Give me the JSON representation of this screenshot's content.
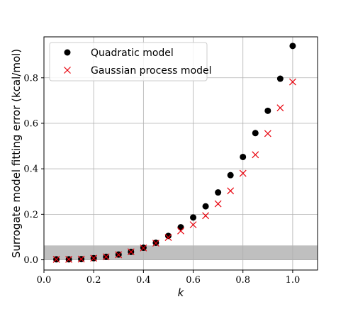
{
  "chart_data": {
    "type": "scatter",
    "title": "",
    "xlabel": "k",
    "ylabel": "Surrogate model fitting error (kcal/mol)",
    "xlim": [
      0.0,
      1.1
    ],
    "ylim": [
      -0.045,
      0.98
    ],
    "xticks": [
      "0.0",
      "0.2",
      "0.4",
      "0.6",
      "0.8",
      "1.0"
    ],
    "yticks": [
      "0.0",
      "0.2",
      "0.4",
      "0.6",
      "0.8"
    ],
    "grid": true,
    "legend_position": "top-left",
    "shaded_band": {
      "y_from": 0.0,
      "y_to": 0.063,
      "color": "#bfbfbf"
    },
    "series": [
      {
        "name": "Quadratic model",
        "marker": "filled-circle",
        "color": "#000000",
        "x": [
          0.05,
          0.1,
          0.15,
          0.2,
          0.25,
          0.3,
          0.35,
          0.4,
          0.45,
          0.5,
          0.55,
          0.6,
          0.65,
          0.7,
          0.75,
          0.8,
          0.85,
          0.9,
          0.95,
          1.0
        ],
        "y": [
          0.002,
          0.002,
          0.003,
          0.007,
          0.013,
          0.023,
          0.035,
          0.053,
          0.075,
          0.105,
          0.143,
          0.186,
          0.235,
          0.296,
          0.372,
          0.452,
          0.557,
          0.655,
          0.796,
          0.94
        ]
      },
      {
        "name": "Gaussian process model",
        "marker": "x",
        "color": "#e8000b",
        "x": [
          0.05,
          0.1,
          0.15,
          0.2,
          0.25,
          0.3,
          0.35,
          0.4,
          0.45,
          0.5,
          0.55,
          0.6,
          0.65,
          0.7,
          0.75,
          0.8,
          0.85,
          0.9,
          0.95,
          1.0
        ],
        "y": [
          0.002,
          0.002,
          0.003,
          0.007,
          0.013,
          0.022,
          0.035,
          0.052,
          0.073,
          0.098,
          0.127,
          0.154,
          0.194,
          0.246,
          0.303,
          0.38,
          0.462,
          0.555,
          0.668,
          0.782
        ]
      }
    ]
  }
}
